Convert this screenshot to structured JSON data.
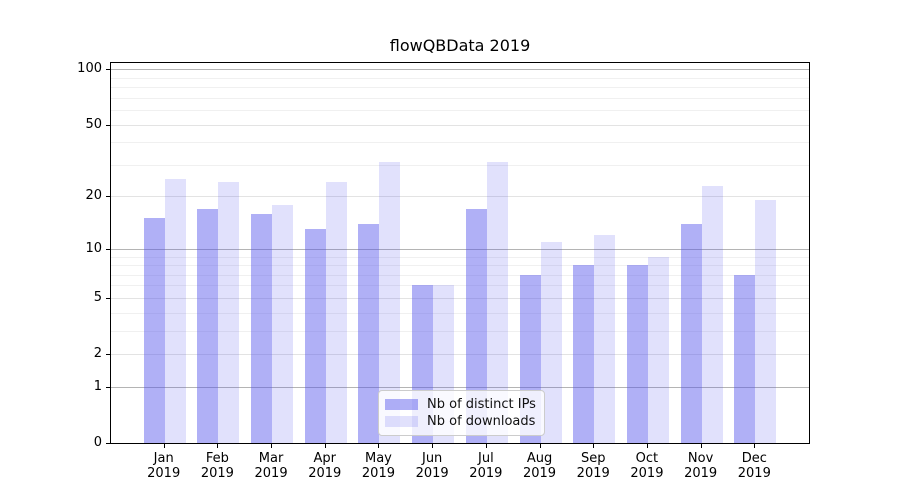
{
  "chart_data": {
    "type": "bar",
    "title": "flowQBData 2019",
    "categories": [
      {
        "month": "Jan",
        "year": "2019"
      },
      {
        "month": "Feb",
        "year": "2019"
      },
      {
        "month": "Mar",
        "year": "2019"
      },
      {
        "month": "Apr",
        "year": "2019"
      },
      {
        "month": "May",
        "year": "2019"
      },
      {
        "month": "Jun",
        "year": "2019"
      },
      {
        "month": "Jul",
        "year": "2019"
      },
      {
        "month": "Aug",
        "year": "2019"
      },
      {
        "month": "Sep",
        "year": "2019"
      },
      {
        "month": "Oct",
        "year": "2019"
      },
      {
        "month": "Nov",
        "year": "2019"
      },
      {
        "month": "Dec",
        "year": "2019"
      }
    ],
    "series": [
      {
        "name": "Nb of distinct IPs",
        "color": "rgba(80,80,235,0.45)",
        "values": [
          15,
          17,
          16,
          13,
          14,
          6,
          17,
          7,
          8,
          8,
          14,
          7
        ]
      },
      {
        "name": "Nb of downloads",
        "color": "rgba(80,80,235,0.17)",
        "values": [
          25,
          24,
          18,
          24,
          31,
          6,
          31,
          11,
          12,
          9,
          23,
          19
        ]
      }
    ],
    "y_axis": {
      "scale": "log10(1+value)",
      "tick_labels": [
        0,
        1,
        2,
        5,
        10,
        20,
        50,
        100
      ],
      "decade_lines": [
        1,
        10,
        100
      ],
      "minor_lines": [
        3,
        4,
        6,
        7,
        8,
        9,
        30,
        40,
        60,
        70,
        80,
        90
      ],
      "range": [
        0,
        110
      ],
      "grid": true
    },
    "legend": {
      "position": "inside-bottom-center",
      "entries": [
        "Nb of distinct IPs",
        "Nb of downloads"
      ]
    }
  }
}
